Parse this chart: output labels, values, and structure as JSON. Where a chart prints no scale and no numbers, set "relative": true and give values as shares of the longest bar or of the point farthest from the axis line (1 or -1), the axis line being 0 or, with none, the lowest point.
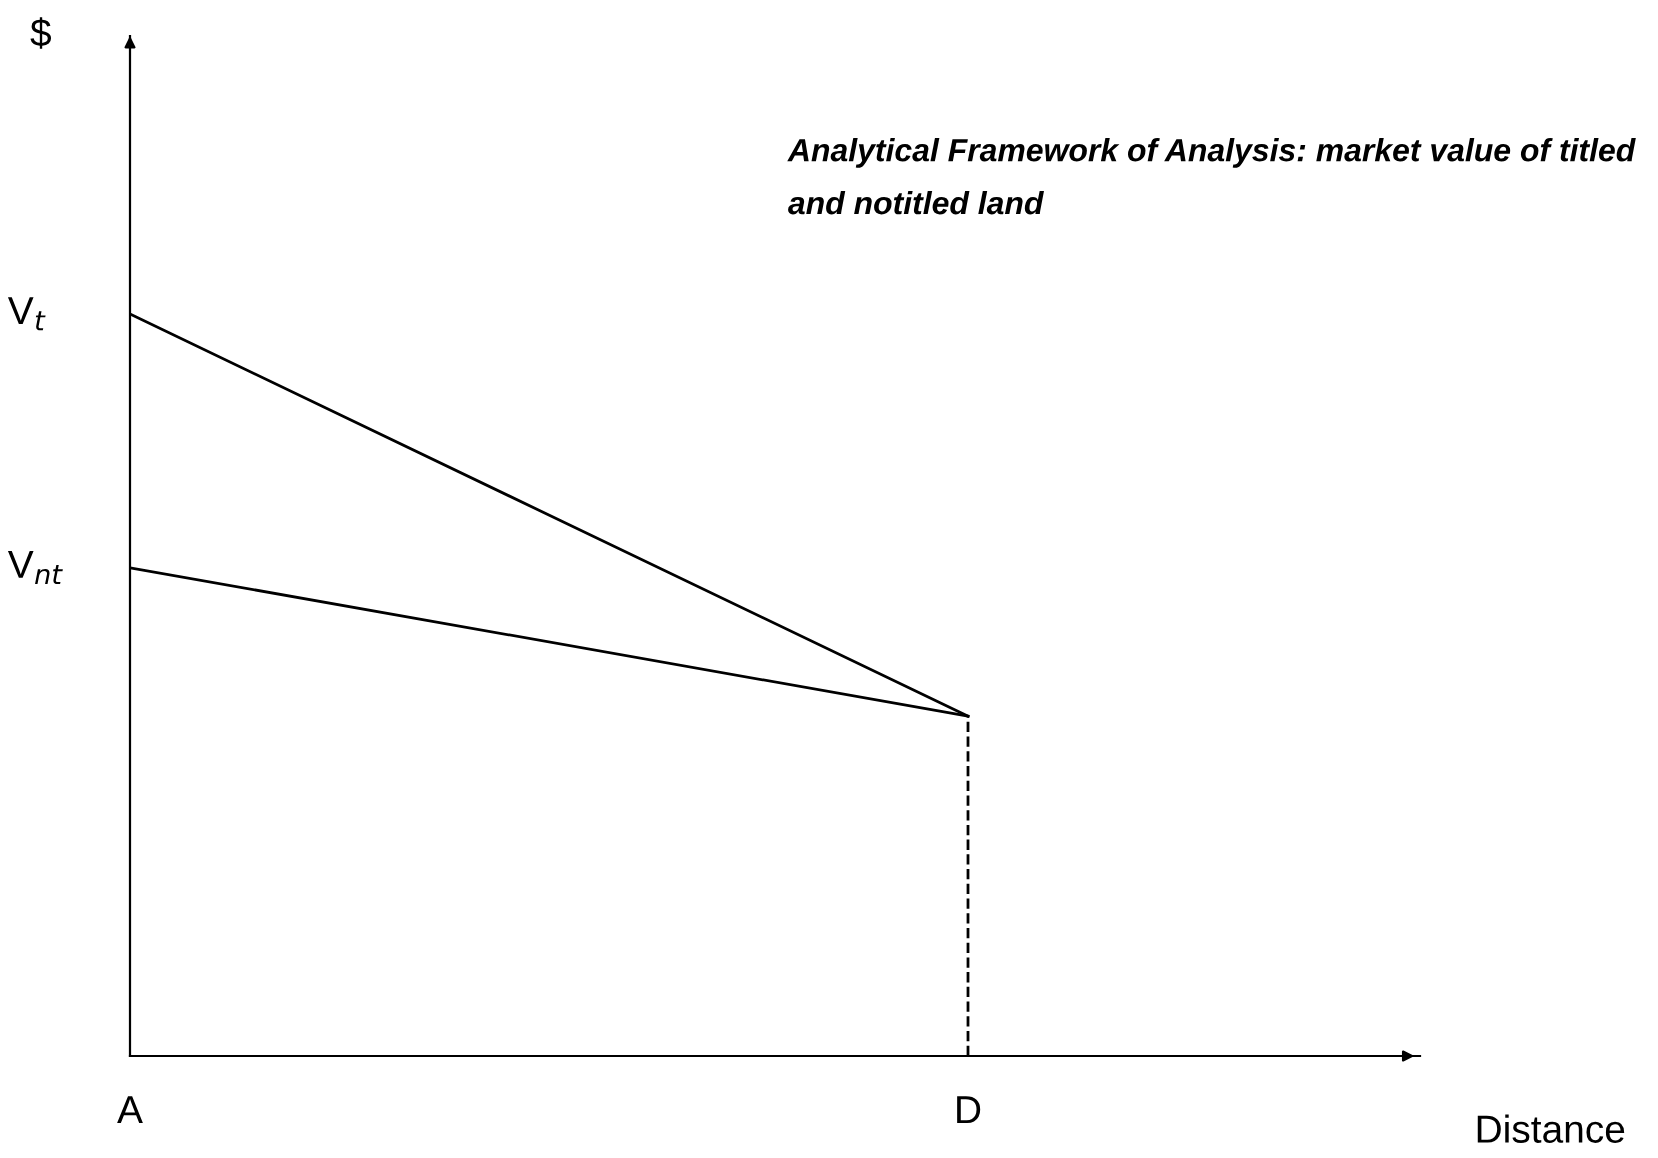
{
  "chart_data": {
    "type": "line",
    "relative": true,
    "title": "Analytical Framework of Analysis: market value of titled and notitled land",
    "xlabel": "Distance",
    "categories": [
      "A",
      "D"
    ],
    "series": [
      {
        "color": "#000000",
        "values": [
          1,
          0.458
        ]
      },
      {
        "color": "#000000",
        "values": [
          0.658,
          0.458
        ]
      }
    ],
    "annotations": [
      "$",
      "V$_{t}$",
      "V$_{nt}$"
    ],
    "ref_lines": [
      {
        "axis": "x",
        "value": "D",
        "line_style": "dashed",
        "color": "#000000"
      }
    ],
    "marker": "none",
    "line_style": "solid"
  }
}
